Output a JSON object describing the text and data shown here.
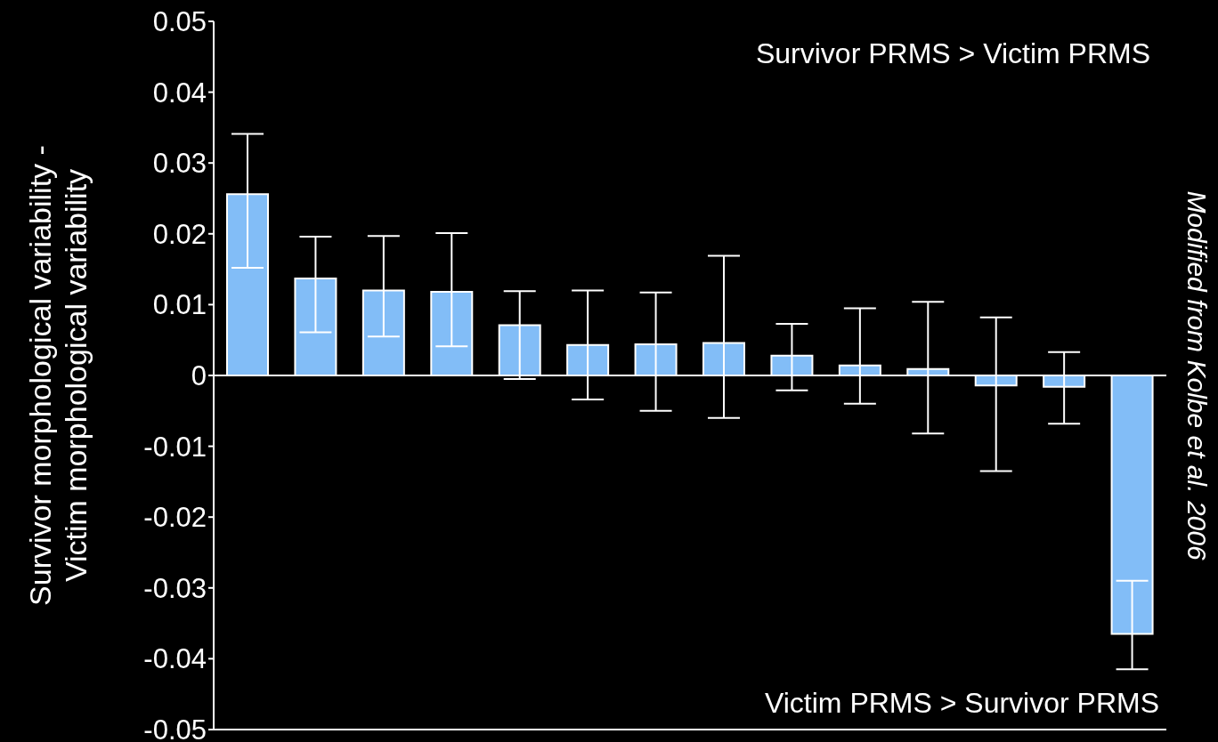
{
  "chart_data": {
    "type": "bar",
    "ylabel": "Survivor morphological variability -\nVictim morphological variability",
    "categories": [
      null,
      null,
      null,
      null,
      null,
      null,
      null,
      null,
      null,
      null,
      null,
      null,
      null,
      null
    ],
    "values": [
      0.0256,
      0.0137,
      0.012,
      0.0118,
      0.0071,
      0.0043,
      0.0044,
      0.0046,
      0.0028,
      0.0014,
      0.0009,
      -0.0014,
      -0.0016,
      -0.0365
    ],
    "errors": [
      [
        0.0152,
        0.0341
      ],
      [
        0.0061,
        0.0196
      ],
      [
        0.0055,
        0.0197
      ],
      [
        0.0041,
        0.0201
      ],
      [
        -0.0005,
        0.0119
      ],
      [
        -0.0034,
        0.012
      ],
      [
        -0.005,
        0.0117
      ],
      [
        -0.006,
        0.0169
      ],
      [
        -0.0021,
        0.0073
      ],
      [
        -0.004,
        0.0095
      ],
      [
        -0.0082,
        0.0104
      ],
      [
        -0.0135,
        0.0082
      ],
      [
        -0.0068,
        0.0033
      ],
      [
        -0.0415,
        -0.029
      ]
    ],
    "color": "#82bdf7",
    "ylim": [
      -0.05,
      0.05
    ],
    "yticks": [
      -0.05,
      -0.04,
      -0.03,
      -0.02,
      -0.01,
      0,
      0.01,
      0.02,
      0.03,
      0.04,
      0.05
    ],
    "ref_lines": [
      {
        "axis": "y",
        "value": 0,
        "color": "#ffffff"
      }
    ],
    "tick_labels": "y",
    "grid": false,
    "legend": false,
    "annotations": [
      "Survivor PRMS > Victim PRMS",
      "Victim PRMS > Survivor PRMS",
      "Modified from Kolbe et al. 2006"
    ]
  }
}
